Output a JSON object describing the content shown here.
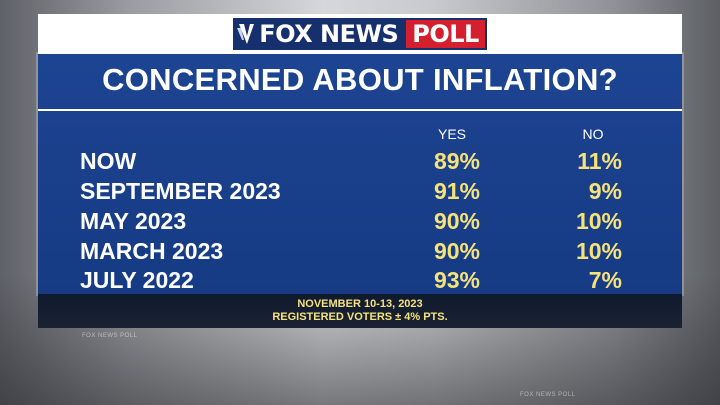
{
  "brand": {
    "logo_fox": "FOX NEWS",
    "logo_poll": "POLL",
    "colors": {
      "navy": "#16306e",
      "red": "#d4202e",
      "panel": "#1d4492",
      "highlight": "#f6e27a"
    }
  },
  "chart_data": {
    "type": "table",
    "title": "CONCERNED ABOUT INFLATION?",
    "columns": [
      "YES",
      "NO"
    ],
    "rows": [
      {
        "label": "NOW",
        "yes": "89%",
        "no": "11%"
      },
      {
        "label": "SEPTEMBER 2023",
        "yes": "91%",
        "no": "9%"
      },
      {
        "label": "MAY 2023",
        "yes": "90%",
        "no": "10%"
      },
      {
        "label": "MARCH 2023",
        "yes": "90%",
        "no": "10%"
      },
      {
        "label": "JULY 2022",
        "yes": "93%",
        "no": "7%"
      }
    ]
  },
  "footer": {
    "dates": "NOVEMBER 10-13, 2023",
    "sample": "REGISTERED VOTERS ± 4% PTS."
  },
  "background": {
    "watermarks": [
      "FOX NEWS POLL",
      "FOX NEWS POLL"
    ]
  }
}
